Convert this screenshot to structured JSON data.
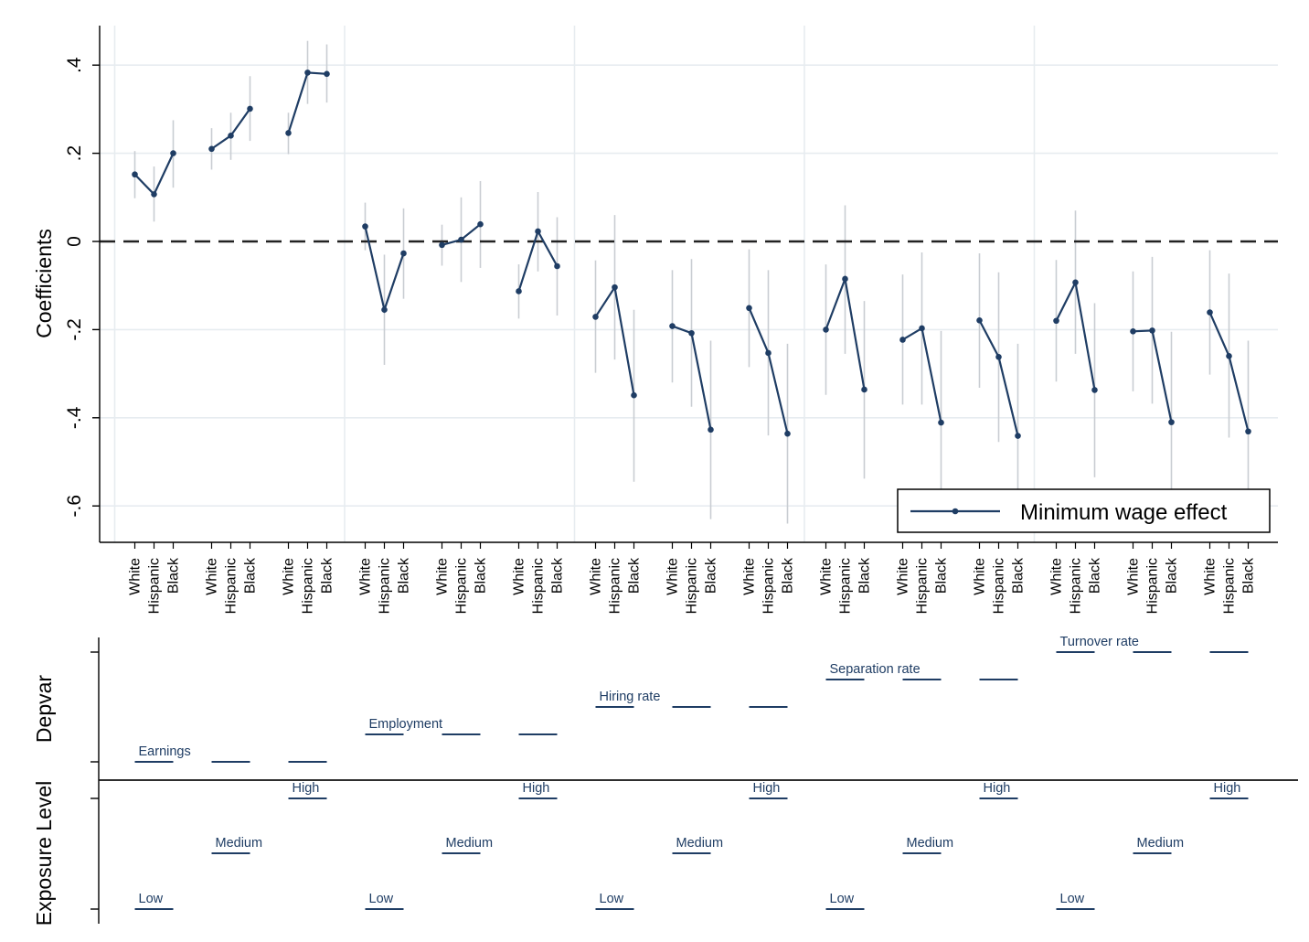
{
  "chart_data": {
    "type": "line",
    "ylabel": "Coefficients",
    "ylim": [
      -0.67,
      0.49
    ],
    "yticks": [
      0.4,
      0.2,
      0,
      -0.2,
      -0.4,
      -0.6
    ],
    "ytick_labels": [
      ".4",
      ".2",
      "0",
      "-.2",
      "-.4",
      "-.6"
    ],
    "reference_line": 0,
    "grid": true,
    "legend": {
      "position": "bottom-right",
      "label": "Minimum wage effect"
    },
    "series_color": "#1f3d64",
    "ci_color": "#c9cdd2",
    "race_labels": [
      "White",
      "Hispanic",
      "Black"
    ],
    "groups": [
      {
        "depvar": "Earnings",
        "exposure": "Low",
        "points": [
          {
            "race": "White",
            "y": 0.152,
            "lo": 0.098,
            "hi": 0.205
          },
          {
            "race": "Hispanic",
            "y": 0.107,
            "lo": 0.045,
            "hi": 0.17
          },
          {
            "race": "Black",
            "y": 0.2,
            "lo": 0.122,
            "hi": 0.275
          }
        ]
      },
      {
        "depvar": "Earnings",
        "exposure": "Medium",
        "points": [
          {
            "race": "White",
            "y": 0.21,
            "lo": 0.163,
            "hi": 0.257
          },
          {
            "race": "Hispanic",
            "y": 0.24,
            "lo": 0.185,
            "hi": 0.292
          },
          {
            "race": "Black",
            "y": 0.301,
            "lo": 0.228,
            "hi": 0.375
          }
        ]
      },
      {
        "depvar": "Earnings",
        "exposure": "High",
        "points": [
          {
            "race": "White",
            "y": 0.246,
            "lo": 0.198,
            "hi": 0.292
          },
          {
            "race": "Hispanic",
            "y": 0.383,
            "lo": 0.312,
            "hi": 0.455
          },
          {
            "race": "Black",
            "y": 0.38,
            "lo": 0.315,
            "hi": 0.447
          }
        ]
      },
      {
        "depvar": "Employment",
        "exposure": "Low",
        "points": [
          {
            "race": "White",
            "y": 0.034,
            "lo": -0.02,
            "hi": 0.088
          },
          {
            "race": "Hispanic",
            "y": -0.155,
            "lo": -0.28,
            "hi": -0.03
          },
          {
            "race": "Black",
            "y": -0.027,
            "lo": -0.13,
            "hi": 0.075
          }
        ]
      },
      {
        "depvar": "Employment",
        "exposure": "Medium",
        "points": [
          {
            "race": "White",
            "y": -0.008,
            "lo": -0.055,
            "hi": 0.038
          },
          {
            "race": "Hispanic",
            "y": 0.004,
            "lo": -0.092,
            "hi": 0.1
          },
          {
            "race": "Black",
            "y": 0.039,
            "lo": -0.06,
            "hi": 0.137
          }
        ]
      },
      {
        "depvar": "Employment",
        "exposure": "High",
        "points": [
          {
            "race": "White",
            "y": -0.113,
            "lo": -0.175,
            "hi": -0.052
          },
          {
            "race": "Hispanic",
            "y": 0.023,
            "lo": -0.068,
            "hi": 0.112
          },
          {
            "race": "Black",
            "y": -0.056,
            "lo": -0.168,
            "hi": 0.055
          }
        ]
      },
      {
        "depvar": "Hiring rate",
        "exposure": "Low",
        "points": [
          {
            "race": "White",
            "y": -0.171,
            "lo": -0.298,
            "hi": -0.043
          },
          {
            "race": "Hispanic",
            "y": -0.104,
            "lo": -0.268,
            "hi": 0.06
          },
          {
            "race": "Black",
            "y": -0.349,
            "lo": -0.545,
            "hi": -0.155
          }
        ]
      },
      {
        "depvar": "Hiring rate",
        "exposure": "Medium",
        "points": [
          {
            "race": "White",
            "y": -0.192,
            "lo": -0.32,
            "hi": -0.065
          },
          {
            "race": "Hispanic",
            "y": -0.208,
            "lo": -0.375,
            "hi": -0.04
          },
          {
            "race": "Black",
            "y": -0.427,
            "lo": -0.63,
            "hi": -0.225
          }
        ]
      },
      {
        "depvar": "Hiring rate",
        "exposure": "High",
        "points": [
          {
            "race": "White",
            "y": -0.151,
            "lo": -0.285,
            "hi": -0.018
          },
          {
            "race": "Hispanic",
            "y": -0.253,
            "lo": -0.44,
            "hi": -0.065
          },
          {
            "race": "Black",
            "y": -0.436,
            "lo": -0.64,
            "hi": -0.232
          }
        ]
      },
      {
        "depvar": "Separation rate",
        "exposure": "Low",
        "points": [
          {
            "race": "White",
            "y": -0.2,
            "lo": -0.348,
            "hi": -0.052
          },
          {
            "race": "Hispanic",
            "y": -0.085,
            "lo": -0.255,
            "hi": 0.082
          },
          {
            "race": "Black",
            "y": -0.336,
            "lo": -0.538,
            "hi": -0.135
          }
        ]
      },
      {
        "depvar": "Separation rate",
        "exposure": "Medium",
        "points": [
          {
            "race": "White",
            "y": -0.223,
            "lo": -0.37,
            "hi": -0.075
          },
          {
            "race": "Hispanic",
            "y": -0.197,
            "lo": -0.37,
            "hi": -0.025
          },
          {
            "race": "Black",
            "y": -0.411,
            "lo": -0.62,
            "hi": -0.203
          }
        ]
      },
      {
        "depvar": "Separation rate",
        "exposure": "High",
        "points": [
          {
            "race": "White",
            "y": -0.179,
            "lo": -0.332,
            "hi": -0.027
          },
          {
            "race": "Hispanic",
            "y": -0.262,
            "lo": -0.455,
            "hi": -0.07
          },
          {
            "race": "Black",
            "y": -0.441,
            "lo": -0.65,
            "hi": -0.232
          }
        ]
      },
      {
        "depvar": "Turnover rate",
        "exposure": "Low",
        "points": [
          {
            "race": "White",
            "y": -0.18,
            "lo": -0.318,
            "hi": -0.042
          },
          {
            "race": "Hispanic",
            "y": -0.093,
            "lo": -0.255,
            "hi": 0.07
          },
          {
            "race": "Black",
            "y": -0.337,
            "lo": -0.535,
            "hi": -0.14
          }
        ]
      },
      {
        "depvar": "Turnover rate",
        "exposure": "Medium",
        "points": [
          {
            "race": "White",
            "y": -0.204,
            "lo": -0.34,
            "hi": -0.068
          },
          {
            "race": "Hispanic",
            "y": -0.202,
            "lo": -0.368,
            "hi": -0.035
          },
          {
            "race": "Black",
            "y": -0.41,
            "lo": -0.615,
            "hi": -0.205
          }
        ]
      },
      {
        "depvar": "Turnover rate",
        "exposure": "High",
        "points": [
          {
            "race": "White",
            "y": -0.161,
            "lo": -0.302,
            "hi": -0.02
          },
          {
            "race": "Hispanic",
            "y": -0.26,
            "lo": -0.445,
            "hi": -0.073
          },
          {
            "race": "Black",
            "y": -0.431,
            "lo": -0.635,
            "hi": -0.225
          }
        ]
      }
    ],
    "bottom_panel": {
      "depvar_label": "Depvar",
      "exposure_label": "Exposure Level",
      "depvar_levels": [
        "Earnings",
        "Employment",
        "Hiring rate",
        "Separation rate",
        "Turnover rate"
      ],
      "exposure_levels": [
        "Low",
        "Medium",
        "High"
      ]
    }
  }
}
